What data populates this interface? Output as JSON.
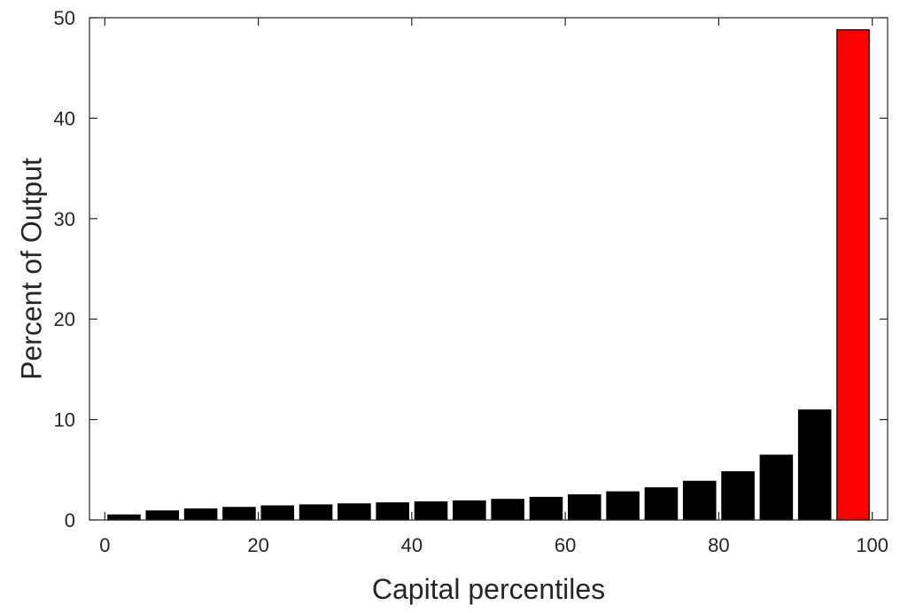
{
  "chart_data": {
    "type": "bar",
    "title": "",
    "xlabel": "Capital percentiles",
    "ylabel": "Percent of Output",
    "xlim": [
      -2,
      102
    ],
    "ylim": [
      0,
      50
    ],
    "xticks": [
      0,
      20,
      40,
      60,
      80,
      100
    ],
    "yticks": [
      0,
      10,
      20,
      30,
      40,
      50
    ],
    "grid": false,
    "legend": "none",
    "box": true,
    "bar_width": 4.2,
    "x": [
      2.5,
      7.5,
      12.5,
      17.5,
      22.5,
      27.5,
      32.5,
      37.5,
      42.5,
      47.5,
      52.5,
      57.5,
      62.5,
      67.5,
      72.5,
      77.5,
      82.5,
      87.5,
      92.5,
      97.5
    ],
    "values": [
      0.5,
      0.9,
      1.1,
      1.25,
      1.4,
      1.5,
      1.6,
      1.7,
      1.8,
      1.9,
      2.05,
      2.25,
      2.5,
      2.8,
      3.2,
      3.85,
      4.8,
      6.45,
      10.95,
      48.8
    ],
    "colors": {
      "default": "#000000",
      "highlight": "#ff0000",
      "axis": "#262626"
    },
    "highlight_indices": [
      19
    ]
  }
}
